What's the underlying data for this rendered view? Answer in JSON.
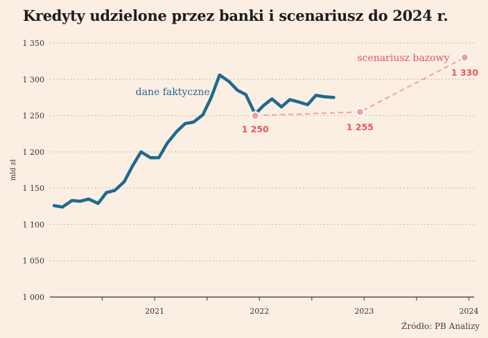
{
  "title": "Kredyty udzielone przez banki i scenariusz do 2024 r.",
  "source": "Źródło: PB Analizy",
  "colors": {
    "background": "#fbeee3",
    "actual": "#1e6a8d",
    "scenario": "#f0a0a4",
    "scenario_text": "#e0575b",
    "grid": "#bdb2a8"
  },
  "chart_data": {
    "type": "line",
    "title": "Kredyty udzielone przez banki i scenariusz do 2024 r.",
    "ylabel": "mld zł",
    "xlabel": "",
    "ylim": [
      1000,
      1350
    ],
    "xlim": [
      2020.0,
      2024.05
    ],
    "yticks": [
      1000,
      1050,
      1100,
      1150,
      1200,
      1250,
      1300,
      1350
    ],
    "ytick_labels": [
      "1 000",
      "1 050",
      "1 100",
      "1 150",
      "1 200",
      "1 250",
      "1 300",
      "1 350"
    ],
    "xticks": [
      2021,
      2022,
      2023,
      2024
    ],
    "xtick_labels": [
      "2021",
      "2022",
      "2023",
      "2024"
    ],
    "minor_xticks": [
      2020.5,
      2021.5,
      2022.5,
      2023.5
    ],
    "grid": "horizontal dotted",
    "series": [
      {
        "name": "dane faktyczne",
        "style": "solid",
        "x": [
          2020.04,
          2020.12,
          2020.21,
          2020.29,
          2020.37,
          2020.46,
          2020.54,
          2020.62,
          2020.71,
          2020.79,
          2020.87,
          2020.96,
          2021.04,
          2021.12,
          2021.21,
          2021.29,
          2021.37,
          2021.46,
          2021.54,
          2021.62,
          2021.71,
          2021.79,
          2021.87,
          2021.96,
          2022.04,
          2022.12,
          2022.21,
          2022.29,
          2022.37,
          2022.46,
          2022.54,
          2022.62,
          2022.71
        ],
        "values": [
          1126,
          1124,
          1133,
          1132,
          1135,
          1129,
          1144,
          1147,
          1159,
          1181,
          1200,
          1192,
          1192,
          1212,
          1228,
          1239,
          1241,
          1251,
          1275,
          1306,
          1297,
          1285,
          1279,
          1252,
          1264,
          1273,
          1262,
          1272,
          1269,
          1265,
          1278,
          1276,
          1275
        ]
      },
      {
        "name": "scenariusz bazowy",
        "style": "dashed",
        "x": [
          2021.96,
          2022.96,
          2023.96
        ],
        "values": [
          1250,
          1255,
          1330
        ]
      }
    ],
    "points": [
      {
        "x": 2021.96,
        "value": 1250,
        "label": "1 250"
      },
      {
        "x": 2022.96,
        "value": 1255,
        "label": "1 255"
      },
      {
        "x": 2023.96,
        "value": 1330,
        "label": "1 330"
      }
    ],
    "annotations": [
      {
        "text": "dane faktyczne",
        "series": "dane faktyczne"
      },
      {
        "text": "scenariusz bazowy",
        "series": "scenariusz bazowy"
      }
    ]
  }
}
